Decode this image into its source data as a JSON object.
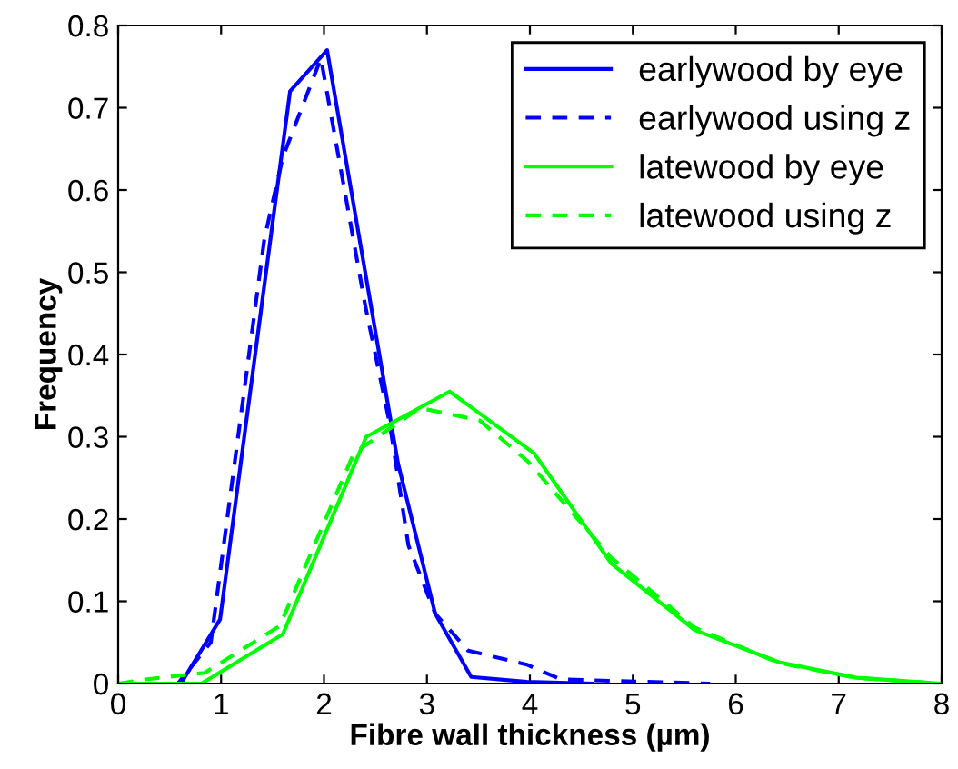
{
  "chart_data": {
    "type": "line",
    "xlabel": "Fibre wall thickness (µm)",
    "ylabel": "Frequency",
    "xlim": [
      0,
      8
    ],
    "ylim": [
      0,
      0.8
    ],
    "xticks": [
      0,
      1,
      2,
      3,
      4,
      5,
      6,
      7,
      8
    ],
    "yticks": [
      0,
      0.1,
      0.2,
      0.3,
      0.4,
      0.5,
      0.6,
      0.7,
      0.8
    ],
    "grid": false,
    "legend": "top right",
    "series": [
      {
        "name": "earlywood by eye",
        "color": "#0000ff",
        "line_style": "solid",
        "x": [
          0,
          0.61,
          0.99,
          1.67,
          2.03,
          2.72,
          3.08,
          3.43,
          3.97,
          4.6
        ],
        "values": [
          0,
          0,
          0.078,
          0.72,
          0.77,
          0.267,
          0.085,
          0.008,
          0.002,
          0
        ]
      },
      {
        "name": "earlywood using z",
        "color": "#0000ff",
        "line_style": "dashed",
        "x": [
          0,
          0.58,
          0.9,
          1.42,
          1.6,
          1.97,
          2.4,
          2.64,
          2.82,
          3.08,
          3.4,
          3.97,
          4.3,
          5.75
        ],
        "values": [
          0,
          0,
          0.05,
          0.54,
          0.64,
          0.76,
          0.46,
          0.315,
          0.168,
          0.085,
          0.04,
          0.023,
          0.005,
          0
        ]
      },
      {
        "name": "latewood by eye",
        "color": "#00ff00",
        "line_style": "solid",
        "x": [
          0,
          0.81,
          1.6,
          2.41,
          3.22,
          4.04,
          4.79,
          5.6,
          6.42,
          7.17,
          7.98
        ],
        "values": [
          0,
          0,
          0.06,
          0.3,
          0.355,
          0.28,
          0.146,
          0.065,
          0.026,
          0.007,
          0
        ]
      },
      {
        "name": "latewood using z",
        "color": "#00ff00",
        "line_style": "dashed",
        "x": [
          0,
          0.26,
          0.84,
          1.57,
          2.29,
          2.93,
          3.51,
          3.98,
          4.79,
          5.6,
          6.42,
          7.17,
          7.98
        ],
        "values": [
          0,
          0.005,
          0.013,
          0.07,
          0.28,
          0.335,
          0.32,
          0.27,
          0.153,
          0.068,
          0.025,
          0.007,
          0
        ]
      }
    ]
  }
}
